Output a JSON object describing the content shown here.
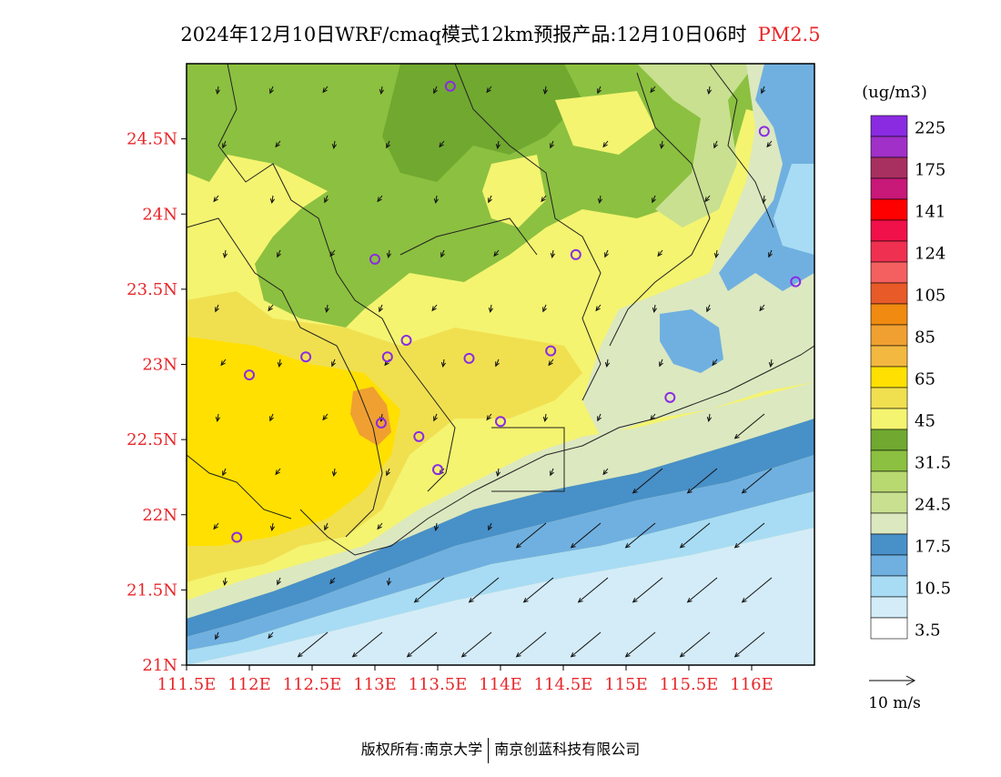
{
  "title": {
    "main": "2024年12月10日WRF/cmaq模式12km预报产品:12月10日06时",
    "variable": "PM2.5"
  },
  "map": {
    "lon_range": [
      111.5,
      116.5
    ],
    "lat_range": [
      21.0,
      25.0
    ],
    "lat_ticks": [
      {
        "value": 24.5,
        "label": "24.5N"
      },
      {
        "value": 24.0,
        "label": "24N"
      },
      {
        "value": 23.5,
        "label": "23.5N"
      },
      {
        "value": 23.0,
        "label": "23N"
      },
      {
        "value": 22.5,
        "label": "22.5N"
      },
      {
        "value": 22.0,
        "label": "22N"
      },
      {
        "value": 21.5,
        "label": "21.5N"
      },
      {
        "value": 21.0,
        "label": "21N"
      }
    ],
    "lon_ticks": [
      {
        "value": 111.5,
        "label": "111.5E"
      },
      {
        "value": 112.0,
        "label": "112E"
      },
      {
        "value": 112.5,
        "label": "112.5E"
      },
      {
        "value": 113.0,
        "label": "113E"
      },
      {
        "value": 113.5,
        "label": "113.5E"
      },
      {
        "value": 114.0,
        "label": "114E"
      },
      {
        "value": 114.5,
        "label": "114.5E"
      },
      {
        "value": 115.0,
        "label": "115E"
      },
      {
        "value": 115.5,
        "label": "115.5E"
      },
      {
        "value": 116.0,
        "label": "116E"
      }
    ],
    "tick_color": "#e8262a"
  },
  "legend": {
    "unit": "(ug/m3)",
    "bins": [
      {
        "color": "#8a2be2",
        "label": "225"
      },
      {
        "color": "#a030c8",
        "label": ""
      },
      {
        "color": "#a83060",
        "label": "175"
      },
      {
        "color": "#c81878",
        "label": ""
      },
      {
        "color": "#ff0000",
        "label": "141"
      },
      {
        "color": "#f0104a",
        "label": ""
      },
      {
        "color": "#f03050",
        "label": "124"
      },
      {
        "color": "#f46060",
        "label": ""
      },
      {
        "color": "#e85a28",
        "label": "105"
      },
      {
        "color": "#f08a10",
        "label": ""
      },
      {
        "color": "#f0a030",
        "label": "85"
      },
      {
        "color": "#f2b840",
        "label": ""
      },
      {
        "color": "#ffe000",
        "label": "65"
      },
      {
        "color": "#f0e050",
        "label": ""
      },
      {
        "color": "#f4f470",
        "label": "45"
      },
      {
        "color": "#70a830",
        "label": ""
      },
      {
        "color": "#8cc040",
        "label": "31.5"
      },
      {
        "color": "#b8d870",
        "label": ""
      },
      {
        "color": "#c8e090",
        "label": "24.5"
      },
      {
        "color": "#dce8c0",
        "label": ""
      },
      {
        "color": "#4890c8",
        "label": "17.5"
      },
      {
        "color": "#70b0e0",
        "label": ""
      },
      {
        "color": "#a8dcf4",
        "label": "10.5"
      },
      {
        "color": "#d4ecf8",
        "label": ""
      },
      {
        "color": "#ffffff",
        "label": "3.5"
      }
    ],
    "wind_ref": "10 m/s"
  },
  "stations": [
    {
      "lon": 113.6,
      "lat": 24.85
    },
    {
      "lon": 116.1,
      "lat": 24.55
    },
    {
      "lon": 113.0,
      "lat": 23.7
    },
    {
      "lon": 114.6,
      "lat": 23.73
    },
    {
      "lon": 116.35,
      "lat": 23.55
    },
    {
      "lon": 113.25,
      "lat": 23.16
    },
    {
      "lon": 112.45,
      "lat": 23.05
    },
    {
      "lon": 113.1,
      "lat": 23.05
    },
    {
      "lon": 113.75,
      "lat": 23.04
    },
    {
      "lon": 114.4,
      "lat": 23.09
    },
    {
      "lon": 112.0,
      "lat": 22.93
    },
    {
      "lon": 115.35,
      "lat": 22.78
    },
    {
      "lon": 113.05,
      "lat": 22.61
    },
    {
      "lon": 113.35,
      "lat": 22.52
    },
    {
      "lon": 114.0,
      "lat": 22.62
    },
    {
      "lon": 113.5,
      "lat": 22.3
    },
    {
      "lon": 111.9,
      "lat": 21.85
    }
  ],
  "footer": {
    "copyright": "版权所有:南京大学",
    "company": "南京创蓝科技有限公司"
  }
}
